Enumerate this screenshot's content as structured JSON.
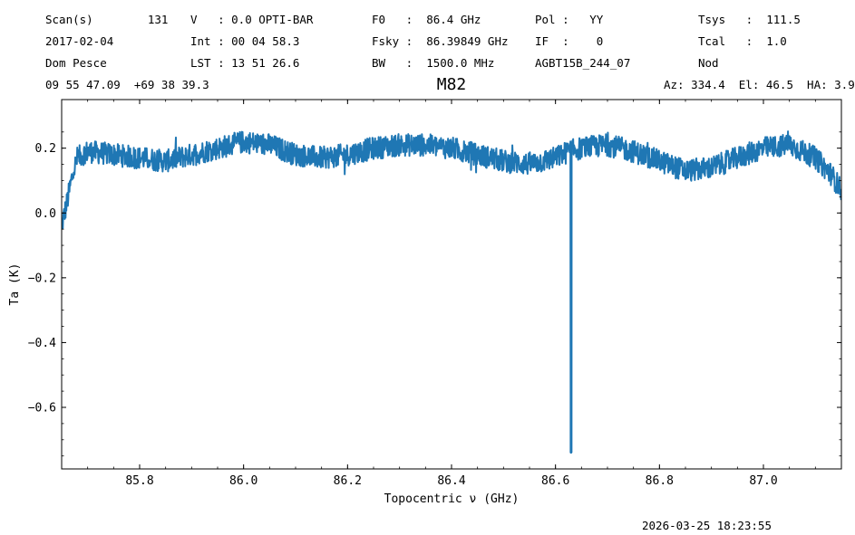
{
  "header": {
    "rows": [
      {
        "c1": "Scan(s)        131",
        "c2": "V   : 0.0 OPTI-BAR",
        "c3": "F0   :  86.4 GHz",
        "c4": "Pol :   YY",
        "c5": "Tsys   :  111.5"
      },
      {
        "c1": "2017-02-04",
        "c2": "Int : 00 04 58.3",
        "c3": "Fsky :  86.39849 GHz",
        "c4": "IF  :    0",
        "c5": "Tcal   :  1.0"
      },
      {
        "c1": "Dom Pesce",
        "c2": "LST : 13 51 26.6",
        "c3": "BW   :  1500.0 MHz",
        "c4": "AGBT15B_244_07",
        "c5": "Nod"
      }
    ],
    "coords": "09 55 47.09  +69 38 39.3",
    "azelha": "Az: 334.4  El: 46.5  HA: 3.9"
  },
  "timestamp": "2026-03-25 18:23:55",
  "colors": {
    "line": "#1f77b4"
  },
  "chart_data": {
    "type": "line",
    "title": "M82",
    "xlabel": "Topocentric ν (GHz)",
    "ylabel": "Ta (K)",
    "xlim": [
      85.65,
      87.15
    ],
    "ylim": [
      -0.79,
      0.35
    ],
    "xticks": [
      85.8,
      86.0,
      86.2,
      86.4,
      86.6,
      86.8,
      87.0
    ],
    "xtick_labels": [
      "85.8",
      "86.0",
      "86.2",
      "86.4",
      "86.6",
      "86.8",
      "87.0"
    ],
    "yticks": [
      -0.6,
      -0.4,
      -0.2,
      0.0,
      0.2
    ],
    "ytick_labels": [
      "−0.6",
      "−0.4",
      "−0.2",
      "0.0",
      "0.2"
    ],
    "grid": false,
    "series": [
      {
        "noise_band": 0.035,
        "baseline": {
          "x": [
            85.65,
            85.66,
            85.67,
            85.68,
            85.7,
            85.75,
            85.8,
            85.85,
            85.9,
            85.95,
            86.0,
            86.05,
            86.1,
            86.15,
            86.2,
            86.25,
            86.3,
            86.35,
            86.4,
            86.45,
            86.5,
            86.55,
            86.6,
            86.625,
            86.65,
            86.7,
            86.75,
            86.8,
            86.85,
            86.9,
            86.95,
            87.0,
            87.05,
            87.1,
            87.13,
            87.15
          ],
          "y": [
            -0.04,
            0.03,
            0.11,
            0.17,
            0.19,
            0.18,
            0.17,
            0.16,
            0.18,
            0.2,
            0.22,
            0.21,
            0.18,
            0.17,
            0.18,
            0.2,
            0.21,
            0.21,
            0.2,
            0.18,
            0.16,
            0.15,
            0.17,
            0.19,
            0.2,
            0.21,
            0.19,
            0.16,
            0.13,
            0.14,
            0.17,
            0.2,
            0.21,
            0.17,
            0.12,
            0.07
          ]
        },
        "spike": {
          "x": 86.63,
          "y": -0.74
        }
      }
    ]
  }
}
